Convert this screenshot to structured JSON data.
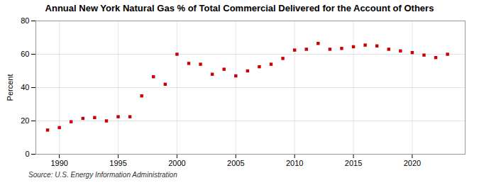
{
  "chart_data": {
    "type": "scatter",
    "title": "Annual New York Natural Gas % of Total Commercial Delivered for the Account of Others",
    "ylabel": "Percent",
    "source": "Source: U.S. Energy Information Administration",
    "x": [
      1989,
      1990,
      1991,
      1992,
      1993,
      1994,
      1995,
      1996,
      1997,
      1998,
      1999,
      2000,
      2001,
      2002,
      2003,
      2004,
      2005,
      2006,
      2007,
      2008,
      2009,
      2010,
      2011,
      2012,
      2013,
      2014,
      2015,
      2016,
      2017,
      2018,
      2019,
      2020,
      2021,
      2022,
      2023
    ],
    "values": [
      14.5,
      16.0,
      19.5,
      21.5,
      22.0,
      20.0,
      22.5,
      22.5,
      35.0,
      46.5,
      42.0,
      60.0,
      54.5,
      54.0,
      48.0,
      51.0,
      47.0,
      50.0,
      52.5,
      54.0,
      57.5,
      62.5,
      63.0,
      66.5,
      63.0,
      63.5,
      64.5,
      65.5,
      65.0,
      63.0,
      62.0,
      61.0,
      59.5,
      58.0,
      60.0
    ],
    "color": "#cc0000",
    "marker": "square",
    "xlim": [
      1988.0,
      2024.5
    ],
    "xticks": [
      1990,
      1995,
      2000,
      2005,
      2010,
      2015,
      2020
    ],
    "ylim": [
      0,
      80
    ],
    "yticks": [
      0,
      20,
      40,
      60,
      80
    ],
    "grid": true
  }
}
